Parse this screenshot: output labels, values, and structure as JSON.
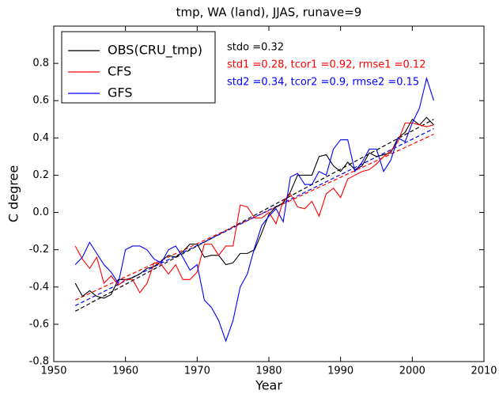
{
  "chart_data": {
    "type": "line",
    "title": "tmp, WA (land), JJAS, runave=9",
    "xlabel": "Year",
    "ylabel": "C degree",
    "x": [
      1953,
      1954,
      1955,
      1956,
      1957,
      1958,
      1959,
      1960,
      1961,
      1962,
      1963,
      1964,
      1965,
      1966,
      1967,
      1968,
      1969,
      1970,
      1971,
      1972,
      1973,
      1974,
      1975,
      1976,
      1977,
      1978,
      1979,
      1980,
      1981,
      1982,
      1983,
      1984,
      1985,
      1986,
      1987,
      1988,
      1989,
      1990,
      1991,
      1992,
      1993,
      1994,
      1995,
      1996,
      1997,
      1998,
      1999,
      2000,
      2001,
      2002,
      2003
    ],
    "series": [
      {
        "name": "OBS(CRU_tmp)",
        "color": "#000000",
        "values": [
          -0.38,
          -0.45,
          -0.42,
          -0.45,
          -0.46,
          -0.44,
          -0.36,
          -0.36,
          -0.35,
          -0.33,
          -0.3,
          -0.29,
          -0.26,
          -0.23,
          -0.24,
          -0.21,
          -0.17,
          -0.17,
          -0.24,
          -0.23,
          -0.23,
          -0.28,
          -0.27,
          -0.22,
          -0.22,
          -0.2,
          -0.11,
          -0.01,
          0.03,
          0.05,
          0.11,
          0.2,
          0.2,
          0.2,
          0.3,
          0.31,
          0.25,
          0.22,
          0.27,
          0.23,
          0.25,
          0.32,
          0.3,
          0.31,
          0.32,
          0.4,
          0.43,
          0.5,
          0.47,
          0.51,
          0.47
        ]
      },
      {
        "name": "CFS",
        "color": "#ff0000",
        "values": [
          -0.18,
          -0.25,
          -0.3,
          -0.24,
          -0.38,
          -0.34,
          -0.39,
          -0.36,
          -0.36,
          -0.43,
          -0.38,
          -0.27,
          -0.28,
          -0.33,
          -0.28,
          -0.36,
          -0.36,
          -0.32,
          -0.17,
          -0.17,
          -0.23,
          -0.18,
          -0.18,
          0.04,
          0.03,
          -0.03,
          -0.03,
          0.0,
          -0.06,
          0.06,
          0.1,
          0.03,
          0.02,
          0.06,
          -0.02,
          0.1,
          0.13,
          0.08,
          0.18,
          0.2,
          0.22,
          0.23,
          0.26,
          0.3,
          0.33,
          0.38,
          0.48,
          0.48,
          0.47,
          0.46,
          0.47
        ]
      },
      {
        "name": "GFS",
        "color": "#0000ff",
        "values": [
          -0.28,
          -0.24,
          -0.16,
          -0.22,
          -0.28,
          -0.32,
          -0.38,
          -0.2,
          -0.18,
          -0.18,
          -0.2,
          -0.25,
          -0.27,
          -0.2,
          -0.18,
          -0.24,
          -0.31,
          -0.28,
          -0.47,
          -0.51,
          -0.58,
          -0.69,
          -0.58,
          -0.4,
          -0.33,
          -0.19,
          -0.07,
          -0.02,
          0.02,
          -0.05,
          0.19,
          0.21,
          0.15,
          0.15,
          0.22,
          0.2,
          0.34,
          0.39,
          0.39,
          0.22,
          0.27,
          0.34,
          0.34,
          0.22,
          0.28,
          0.4,
          0.38,
          0.48,
          0.56,
          0.72,
          0.6
        ]
      }
    ],
    "trend_lines": [
      {
        "color": "#000000",
        "x": [
          1953,
          2003
        ],
        "values": [
          -0.53,
          0.5
        ]
      },
      {
        "color": "#ff0000",
        "x": [
          1953,
          2003
        ],
        "values": [
          -0.47,
          0.42
        ]
      },
      {
        "color": "#0000ff",
        "x": [
          1953,
          2003
        ],
        "values": [
          -0.5,
          0.45
        ]
      }
    ],
    "annotations": [
      {
        "text": "stdo =0.32",
        "color": "#000000"
      },
      {
        "text": "std1 =0.28, tcor1 =0.92, rmse1 =0.12",
        "color": "#ff0000"
      },
      {
        "text": "std2 =0.34, tcor2 =0.9, rmse2 =0.15",
        "color": "#0000ff"
      }
    ],
    "xlim": [
      1950,
      2010
    ],
    "xticks": [
      1950,
      1960,
      1970,
      1980,
      1990,
      2000,
      2010
    ],
    "ylim": [
      -0.8,
      1.0
    ],
    "yticks": [
      -0.8,
      -0.6,
      -0.4,
      -0.2,
      {
        "value": 0,
        "label": "0.0"
      },
      0.2,
      0.4,
      0.6,
      0.8
    ],
    "legend": "upper-left",
    "grid": false
  }
}
